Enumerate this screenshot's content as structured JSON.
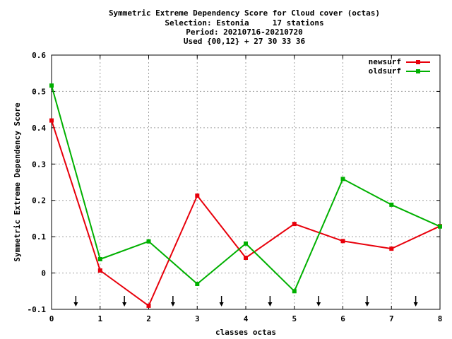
{
  "chart_data": {
    "type": "line",
    "title_lines": [
      "Symmetric Extreme Dependency Score  for Cloud cover (octas)",
      "Selection: Estonia     17 stations",
      "Period: 20210716-20210720",
      "Used {00,12} + 27 30 33 36"
    ],
    "xlabel": "classes octas",
    "ylabel": "Symmetric Extreme Dependency Score",
    "xlim": [
      0,
      8
    ],
    "ylim": [
      -0.1,
      0.6
    ],
    "x_ticks": [
      "0",
      "1",
      "2",
      "3",
      "4",
      "5",
      "6",
      "7",
      "8"
    ],
    "y_ticks": [
      "-0.1",
      "0",
      "0.1",
      "0.2",
      "0.3",
      "0.4",
      "0.5",
      "0.6"
    ],
    "grid": true,
    "legend_position": "top-right",
    "x": [
      0,
      1,
      2,
      3,
      4,
      5,
      6,
      7,
      8
    ],
    "series": [
      {
        "name": "newsurf",
        "color": "#e8000b",
        "values": [
          0.42,
          0.007,
          -0.09,
          0.213,
          0.042,
          0.135,
          0.088,
          0.067,
          0.129
        ]
      },
      {
        "name": "oldsurf",
        "color": "#00b000",
        "values": [
          0.516,
          0.038,
          0.087,
          -0.03,
          0.081,
          -0.05,
          0.259,
          0.188,
          0.128
        ]
      }
    ],
    "arrow_markers_x": [
      0.5,
      1.5,
      2.5,
      3.5,
      4.5,
      5.5,
      6.5,
      7.5
    ]
  }
}
